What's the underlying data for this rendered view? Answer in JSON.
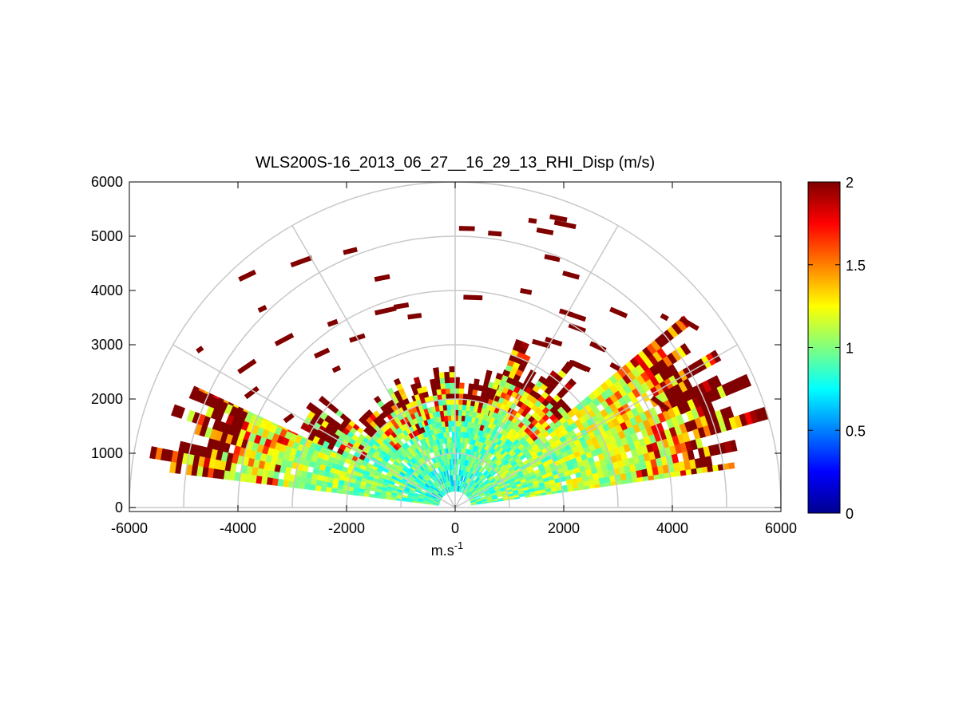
{
  "chart_data": {
    "type": "heatmap",
    "subtype": "polar-rhi-scan",
    "title": "WLS200S-16_2013_06_27__16_29_13_RHI_Disp (m/s)",
    "xlabel_base": "m.s",
    "xlabel_exp": "-1",
    "ylabel": "",
    "xlim": [
      -6000,
      6000
    ],
    "ylim": [
      0,
      6000
    ],
    "x_ticks": [
      "-6000",
      "-4000",
      "-2000",
      "0",
      "2000",
      "4000",
      "6000"
    ],
    "y_ticks": [
      "0",
      "1000",
      "2000",
      "3000",
      "4000",
      "5000",
      "6000"
    ],
    "grid": true,
    "polar_grid": {
      "ring_ranges": [
        1000,
        2000,
        3000,
        4000,
        5000,
        6000
      ],
      "spoke_angles_deg": [
        0,
        30,
        60,
        90,
        120,
        150,
        180
      ]
    },
    "colorbar": {
      "colormap": "jet",
      "range": [
        0,
        2
      ],
      "ticks": [
        "0",
        "0.5",
        "1",
        "1.5",
        "2"
      ],
      "position": "right"
    },
    "scan": {
      "gate_spacing_m": 100,
      "beams": [
        {
          "side": "left",
          "elev_deg": [
            7,
            25
          ],
          "max_range_m": 5800,
          "base_value": 0.85
        },
        {
          "side": "left",
          "elev_deg": [
            25,
            40
          ],
          "max_range_m": 3400,
          "base_value": 0.75
        },
        {
          "side": "left",
          "elev_deg": [
            40,
            70
          ],
          "max_range_m": 2700,
          "base_value": 0.75
        },
        {
          "side": "top",
          "elev_deg": [
            70,
            110
          ],
          "max_range_m": 2700,
          "base_value": 0.7
        },
        {
          "side": "right",
          "elev_deg": [
            110,
            140
          ],
          "max_range_m": 3400,
          "base_value": 0.8
        },
        {
          "side": "right",
          "elev_deg": [
            140,
            172
          ],
          "max_range_m": 6000,
          "base_value": 0.9
        }
      ],
      "noise_value": 2.0
    }
  }
}
